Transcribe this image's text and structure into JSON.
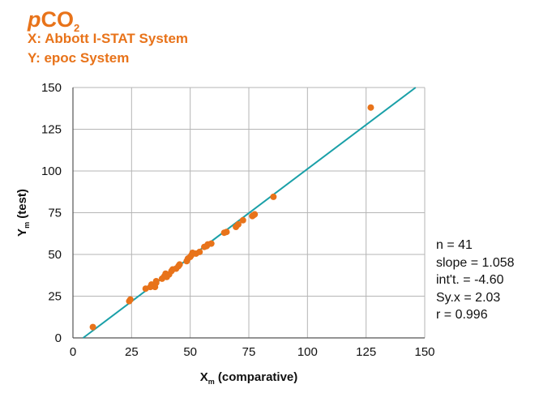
{
  "header": {
    "title_main": "CO",
    "title_prefix": "p",
    "title_sub": "2",
    "x_system": "X: Abbott I-STAT System",
    "y_system": "Y: epoc System"
  },
  "colors": {
    "accent": "#e8731a",
    "regression_line": "#1aa0a8",
    "grid": "#b5b5b5"
  },
  "stats": [
    "n = 41",
    "slope = 1.058",
    "int't. = -4.60",
    "Sy.x = 2.03",
    "r = 0.996"
  ],
  "chart_data": {
    "type": "scatter",
    "xlabel_main": "X",
    "xlabel_sub": "m",
    "xlabel_rest": " (comparative)",
    "ylabel_main": "Y",
    "ylabel_sub": "m",
    "ylabel_rest": " (test)",
    "xlim": [
      0,
      150
    ],
    "ylim": [
      0,
      150
    ],
    "xticks": [
      "0",
      "25",
      "50",
      "75",
      "100",
      "125",
      "150"
    ],
    "yticks": [
      "0",
      "25",
      "50",
      "75",
      "100",
      "125",
      "150"
    ],
    "grid": true,
    "regression": {
      "slope": 1.058,
      "intercept": -4.6
    },
    "points": [
      [
        8.5,
        6.5
      ],
      [
        24,
        22
      ],
      [
        24.5,
        23
      ],
      [
        31,
        29.5
      ],
      [
        33,
        30.5
      ],
      [
        34,
        31.5
      ],
      [
        33.5,
        32
      ],
      [
        35,
        30.5
      ],
      [
        35.5,
        33
      ],
      [
        35.5,
        34
      ],
      [
        38,
        35.5
      ],
      [
        39,
        37
      ],
      [
        39.5,
        38.5
      ],
      [
        40,
        36.5
      ],
      [
        41,
        38
      ],
      [
        42,
        40
      ],
      [
        42.5,
        41
      ],
      [
        44,
        41.5
      ],
      [
        45,
        43
      ],
      [
        45.5,
        44
      ],
      [
        48.5,
        46
      ],
      [
        49,
        47.5
      ],
      [
        50,
        48.5
      ],
      [
        50.5,
        49.5
      ],
      [
        51,
        51
      ],
      [
        52.5,
        50.5
      ],
      [
        54,
        51.5
      ],
      [
        56,
        54.5
      ],
      [
        57,
        55
      ],
      [
        57.5,
        56
      ],
      [
        59,
        56.5
      ],
      [
        64.5,
        63
      ],
      [
        65.5,
        63.5
      ],
      [
        69.5,
        66.5
      ],
      [
        70.5,
        68
      ],
      [
        72.5,
        70.5
      ],
      [
        76.5,
        73
      ],
      [
        77,
        73.5
      ],
      [
        77.5,
        74
      ],
      [
        85.5,
        84.5
      ],
      [
        127,
        138
      ]
    ]
  }
}
